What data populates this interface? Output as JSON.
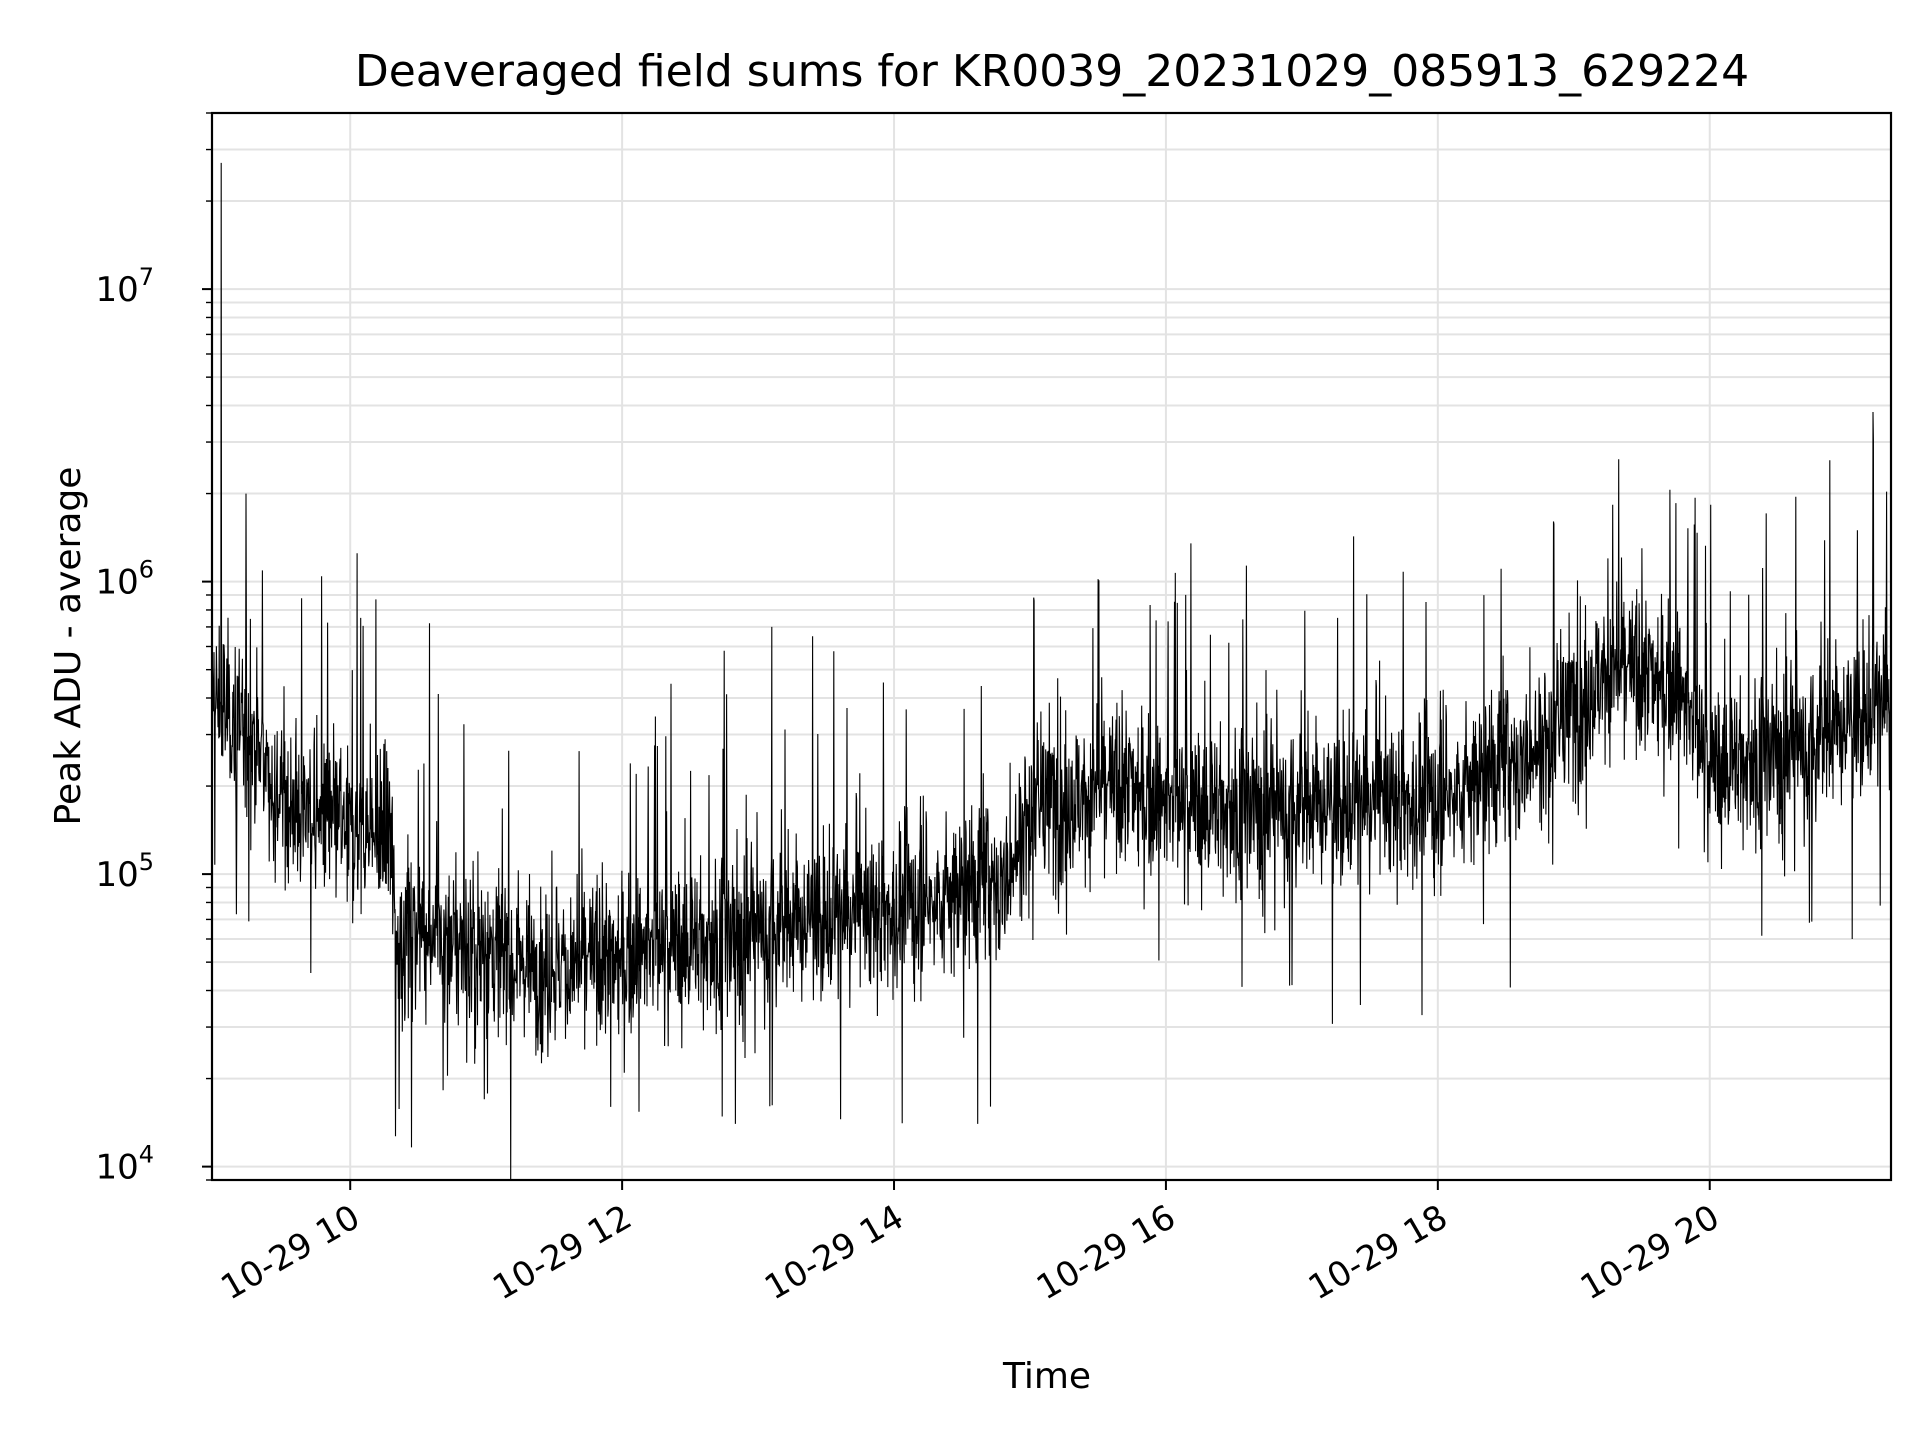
{
  "chart_data": {
    "type": "line",
    "title": "Deaveraged field sums for KR0039_20231029_085913_629224",
    "xlabel": "Time",
    "ylabel": "Peak ADU - average",
    "y_scale": "log",
    "ylim": [
      9000,
      40000000
    ],
    "xlim": [
      "2023-10-29 08:59",
      "2023-10-29 21:20"
    ],
    "grid": true,
    "line_color": "#000000",
    "x_ticks": [
      {
        "value": "2023-10-29 10:00",
        "label": "10-29 10"
      },
      {
        "value": "2023-10-29 12:00",
        "label": "10-29 12"
      },
      {
        "value": "2023-10-29 14:00",
        "label": "10-29 14"
      },
      {
        "value": "2023-10-29 16:00",
        "label": "10-29 16"
      },
      {
        "value": "2023-10-29 18:00",
        "label": "10-29 18"
      },
      {
        "value": "2023-10-29 20:00",
        "label": "10-29 20"
      }
    ],
    "y_ticks": [
      {
        "value": 10000,
        "base": "10",
        "exp": "4"
      },
      {
        "value": 100000,
        "base": "10",
        "exp": "5"
      },
      {
        "value": 1000000,
        "base": "10",
        "exp": "6"
      },
      {
        "value": 10000000,
        "base": "10",
        "exp": "7"
      }
    ],
    "series": [
      {
        "baseline": [
          [
            "2023-10-29 08:59",
            400000
          ],
          [
            "2023-10-29 09:15",
            300000
          ],
          [
            "2023-10-29 09:30",
            180000
          ],
          [
            "2023-10-29 10:00",
            140000
          ],
          [
            "2023-10-29 10:18",
            130000
          ],
          [
            "2023-10-29 10:20",
            65000
          ],
          [
            "2023-10-29 11:00",
            55000
          ],
          [
            "2023-10-29 11:30",
            48000
          ],
          [
            "2023-10-29 12:00",
            52000
          ],
          [
            "2023-10-29 13:00",
            65000
          ],
          [
            "2023-10-29 14:00",
            75000
          ],
          [
            "2023-10-29 14:50",
            95000
          ],
          [
            "2023-10-29 15:00",
            170000
          ],
          [
            "2023-10-29 15:45",
            200000
          ],
          [
            "2023-10-29 16:00",
            170000
          ],
          [
            "2023-10-29 17:00",
            170000
          ],
          [
            "2023-10-29 18:00",
            180000
          ],
          [
            "2023-10-29 18:40",
            250000
          ],
          [
            "2023-10-29 19:15",
            500000
          ],
          [
            "2023-10-29 19:45",
            450000
          ],
          [
            "2023-10-29 20:00",
            230000
          ],
          [
            "2023-10-29 20:45",
            280000
          ],
          [
            "2023-10-29 21:20",
            400000
          ]
        ],
        "spikes": [
          [
            "2023-10-29 09:03",
            27000000
          ],
          [
            "2023-10-29 09:14",
            2000000
          ],
          [
            "2023-10-29 10:03",
            1250000
          ],
          [
            "2023-10-29 10:35",
            720000
          ],
          [
            "2023-10-29 12:45",
            580000
          ],
          [
            "2023-10-29 13:06",
            700000
          ],
          [
            "2023-10-29 13:24",
            650000
          ],
          [
            "2023-10-29 14:37",
            14000
          ],
          [
            "2023-10-29 15:30",
            1020000
          ],
          [
            "2023-10-29 19:15",
            1200000
          ],
          [
            "2023-10-29 19:30",
            1300000
          ],
          [
            "2023-10-29 20:38",
            1950000
          ],
          [
            "2023-10-29 20:53",
            2600000
          ],
          [
            "2023-10-29 21:12",
            3800000
          ],
          [
            "2023-10-29 11:55",
            16000
          ],
          [
            "2023-10-29 12:50",
            14000
          ]
        ]
      }
    ]
  }
}
